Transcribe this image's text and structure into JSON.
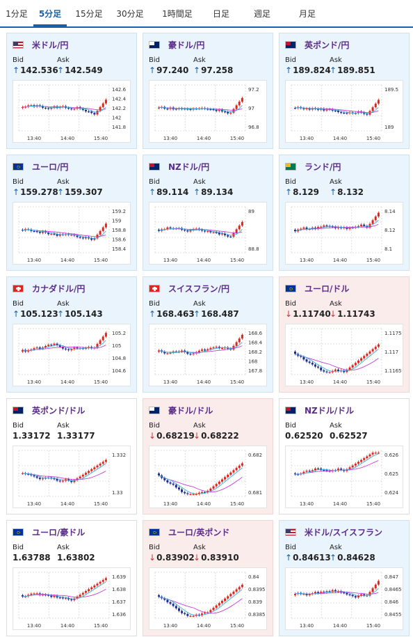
{
  "tabs": [
    {
      "label": "1分足",
      "active": false
    },
    {
      "label": "5分足",
      "active": true
    },
    {
      "label": "15分足",
      "active": false
    },
    {
      "label": "30分足",
      "active": false
    },
    {
      "label": "1時間足",
      "active": false
    },
    {
      "label": "日足",
      "active": false
    },
    {
      "label": "週足",
      "active": false
    },
    {
      "label": "月足",
      "active": false
    }
  ],
  "labels": {
    "bid": "Bid",
    "ask": "Ask"
  },
  "colors": {
    "up_arrow": "#1a5fa8",
    "down_arrow": "#d0312d",
    "candle_up": "#e0241b",
    "candle_down": "#1f2a8a",
    "ma_short": "#39aee0",
    "ma_long": "#c83bd6",
    "pair_name": "#5b2d8a"
  },
  "pairs": [
    {
      "name": "米ドル/円",
      "flag": "us-jp-flag-icon",
      "trend": "up",
      "bid": "142.536",
      "ask": "142.549",
      "yticks": [
        "142.6",
        "142.4",
        "142.2",
        "142",
        "141.8"
      ],
      "xticks": [
        "13:40",
        "14:40",
        "15:40"
      ]
    },
    {
      "name": "豪ドル/円",
      "flag": "au-jp-flag-icon",
      "trend": "up",
      "bid": "97.240",
      "ask": "97.258",
      "yticks": [
        "97.2",
        "97",
        "96.8"
      ],
      "xticks": [
        "13:40",
        "14:40",
        "15:40"
      ]
    },
    {
      "name": "英ポンド/円",
      "flag": "gb-jp-flag-icon",
      "trend": "up",
      "bid": "189.824",
      "ask": "189.851",
      "yticks": [
        "189.5",
        "189"
      ],
      "xticks": [
        "13:40",
        "14:40",
        "15:40"
      ]
    },
    {
      "name": "ユーロ/円",
      "flag": "eu-jp-flag-icon",
      "trend": "up",
      "bid": "159.278",
      "ask": "159.307",
      "yticks": [
        "159.2",
        "159",
        "158.8",
        "158.6",
        "158.4"
      ],
      "xticks": [
        "13:40",
        "14:40",
        "15:40"
      ]
    },
    {
      "name": "NZドル/円",
      "flag": "nz-jp-flag-icon",
      "trend": "up",
      "bid": "89.114",
      "ask": "89.134",
      "yticks": [
        "89",
        "88.8"
      ],
      "xticks": [
        "13:40",
        "14:40",
        "15:40"
      ]
    },
    {
      "name": "ランド/円",
      "flag": "za-jp-flag-icon",
      "trend": "up",
      "bid": "8.129",
      "ask": "8.132",
      "yticks": [
        "8.14",
        "8.12",
        "8.1"
      ],
      "xticks": [
        "13:40",
        "14:40",
        "15:40"
      ]
    },
    {
      "name": "カナダドル/円",
      "flag": "ca-jp-flag-icon",
      "trend": "up",
      "bid": "105.123",
      "ask": "105.143",
      "yticks": [
        "105.2",
        "105",
        "104.8",
        "104.6"
      ],
      "xticks": [
        "13:40",
        "14:40",
        "15:40"
      ]
    },
    {
      "name": "スイスフラン/円",
      "flag": "ch-jp-flag-icon",
      "trend": "up",
      "bid": "168.463",
      "ask": "168.487",
      "yticks": [
        "168.6",
        "168.4",
        "168.2",
        "168",
        "167.8"
      ],
      "xticks": [
        "13:40",
        "14:40",
        "15:40"
      ]
    },
    {
      "name": "ユーロ/ドル",
      "flag": "eu-us-flag-icon",
      "trend": "down",
      "bid": "1.11740",
      "ask": "1.11743",
      "yticks": [
        "1.1175",
        "1.117",
        "1.1165"
      ],
      "xticks": [
        "13:40",
        "14:40",
        "15:40"
      ]
    },
    {
      "name": "英ポンド/ドル",
      "flag": "gb-us-flag-icon",
      "trend": "flat",
      "bid": "1.33172",
      "ask": "1.33177",
      "yticks": [
        "1.332",
        "1.33"
      ],
      "xticks": [
        "13:40",
        "14:40",
        "15:40"
      ]
    },
    {
      "name": "豪ドル/ドル",
      "flag": "au-us-flag-icon",
      "trend": "down",
      "bid": "0.68219",
      "ask": "0.68222",
      "yticks": [
        "0.682",
        "0.681"
      ],
      "xticks": [
        "13:40",
        "14:40",
        "15:40"
      ]
    },
    {
      "name": "NZドル/ドル",
      "flag": "nz-us-flag-icon",
      "trend": "flat",
      "bid": "0.62520",
      "ask": "0.62527",
      "yticks": [
        "0.626",
        "0.625",
        "0.624"
      ],
      "xticks": [
        "13:40",
        "14:40",
        "15:40"
      ]
    },
    {
      "name": "ユーロ/豪ドル",
      "flag": "eu-au-flag-icon",
      "trend": "flat",
      "bid": "1.63788",
      "ask": "1.63802",
      "yticks": [
        "1.639",
        "1.638",
        "1.637",
        "1.636"
      ],
      "xticks": [
        "13:40",
        "14:40",
        "15:40"
      ]
    },
    {
      "name": "ユーロ/英ポンド",
      "flag": "eu-gb-flag-icon",
      "trend": "down",
      "bid": "0.83902",
      "ask": "0.83910",
      "yticks": [
        "0.84",
        "0.8395",
        "0.839",
        "0.8385"
      ],
      "xticks": [
        "13:40",
        "14:40",
        "15:40"
      ]
    },
    {
      "name": "米ドル/スイスフラン",
      "flag": "us-ch-flag-icon",
      "trend": "up",
      "bid": "0.84613",
      "ask": "0.84628",
      "yticks": [
        "0.847",
        "0.8465",
        "0.846",
        "0.8455"
      ],
      "xticks": [
        "13:40",
        "14:40",
        "15:40"
      ]
    }
  ]
}
